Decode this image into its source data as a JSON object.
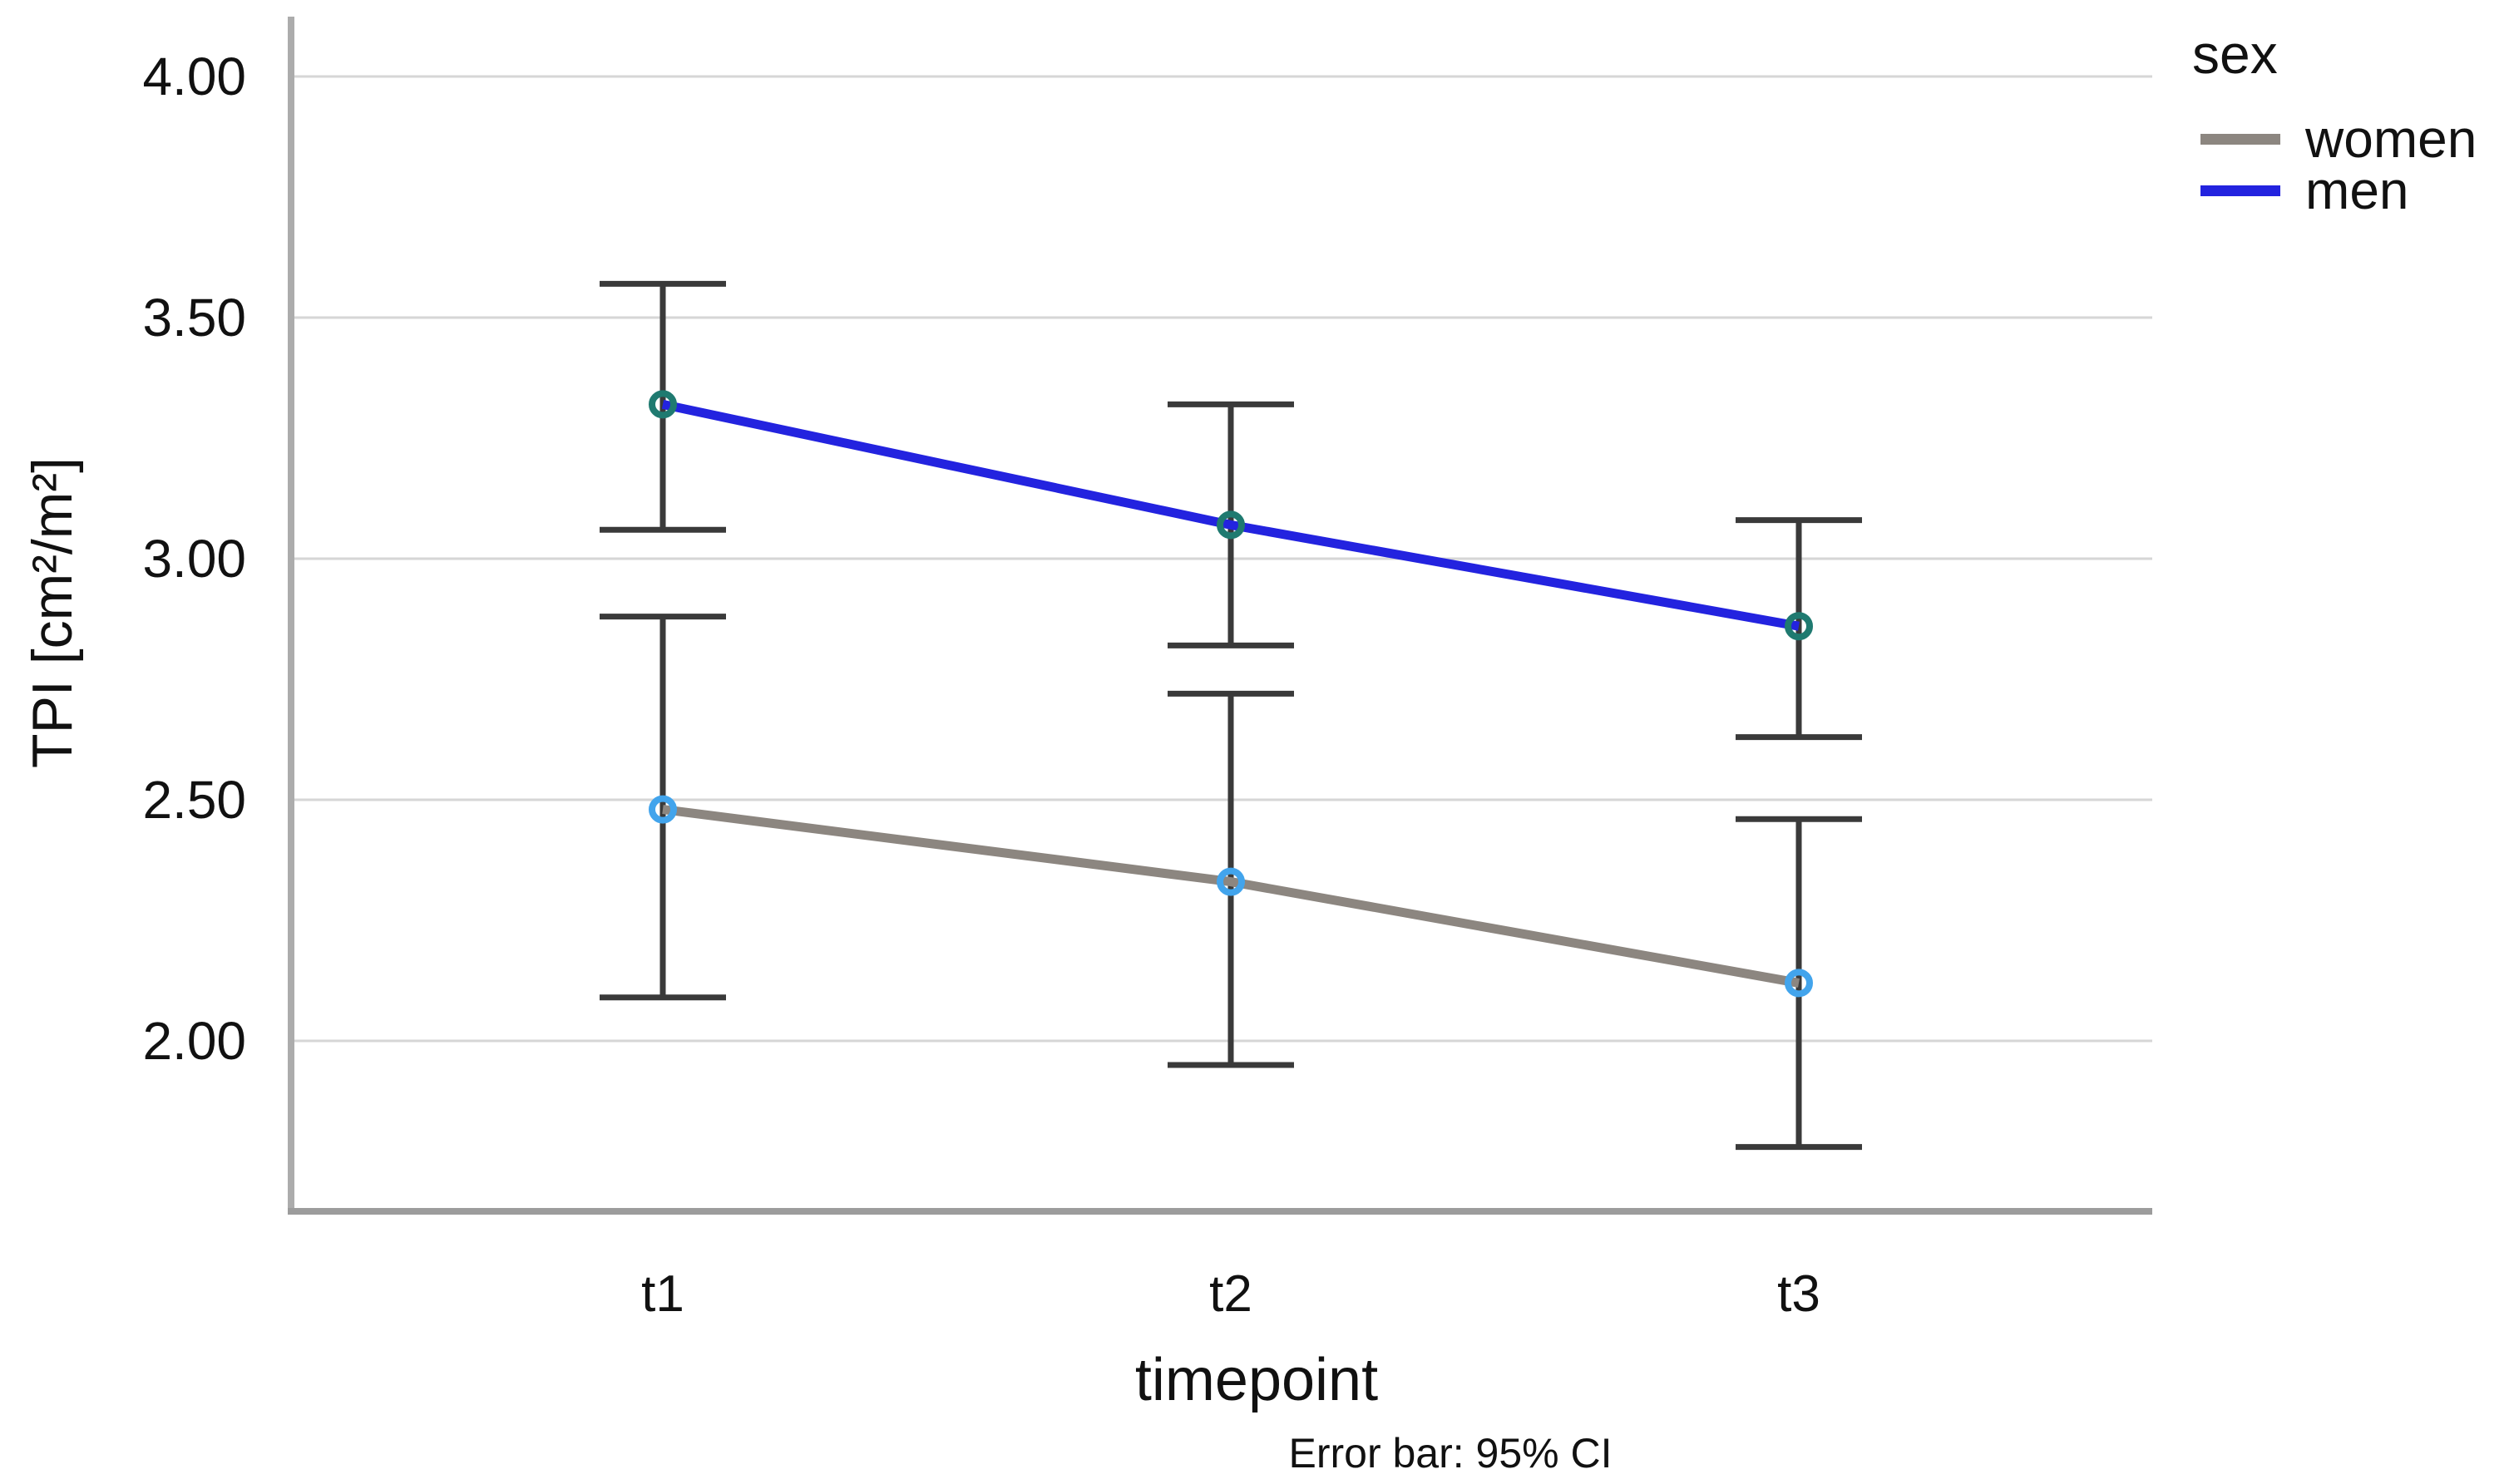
{
  "chart_data": {
    "type": "line",
    "title": "",
    "x_categories": [
      "t1",
      "t2",
      "t3"
    ],
    "xlabel": "timepoint",
    "ylabel": "TPI [cm²/m²]",
    "y_ticks": [
      {
        "label": "4.00",
        "value": 4.0
      },
      {
        "label": "3.50",
        "value": 3.5
      },
      {
        "label": "3.00",
        "value": 3.0
      },
      {
        "label": "2.50",
        "value": 2.5
      },
      {
        "label": "2.00",
        "value": 2.0
      }
    ],
    "ylim": [
      1.65,
      4.12
    ],
    "grid": true,
    "caption": "Error bar: 95% CI",
    "legend": {
      "title": "sex",
      "position": "top-right",
      "entries": [
        {
          "label": "women",
          "color": "#8C8680"
        },
        {
          "label": "men",
          "color": "#2323DF"
        }
      ]
    },
    "series": [
      {
        "name": "women",
        "line_color": "#8C8680",
        "marker_color": "#42A4EC",
        "values": [
          2.48,
          2.33,
          2.12
        ],
        "ci_low": [
          2.09,
          1.95,
          1.78
        ],
        "ci_high": [
          2.88,
          2.72,
          2.46
        ]
      },
      {
        "name": "men",
        "line_color": "#2323DF",
        "marker_color": "#1F7A70",
        "values": [
          3.32,
          3.07,
          2.86
        ],
        "ci_low": [
          3.06,
          2.82,
          2.63
        ],
        "ci_high": [
          3.57,
          3.32,
          3.08
        ]
      }
    ],
    "error_bar": {
      "color": "#3A3A3A",
      "represents": "95% CI"
    },
    "colors": {
      "gridline": "#D6D6D6",
      "y_axis_line": "#ACACAC",
      "x_axis_line": "#9C9C9C",
      "background": "#FFFFFF"
    }
  }
}
